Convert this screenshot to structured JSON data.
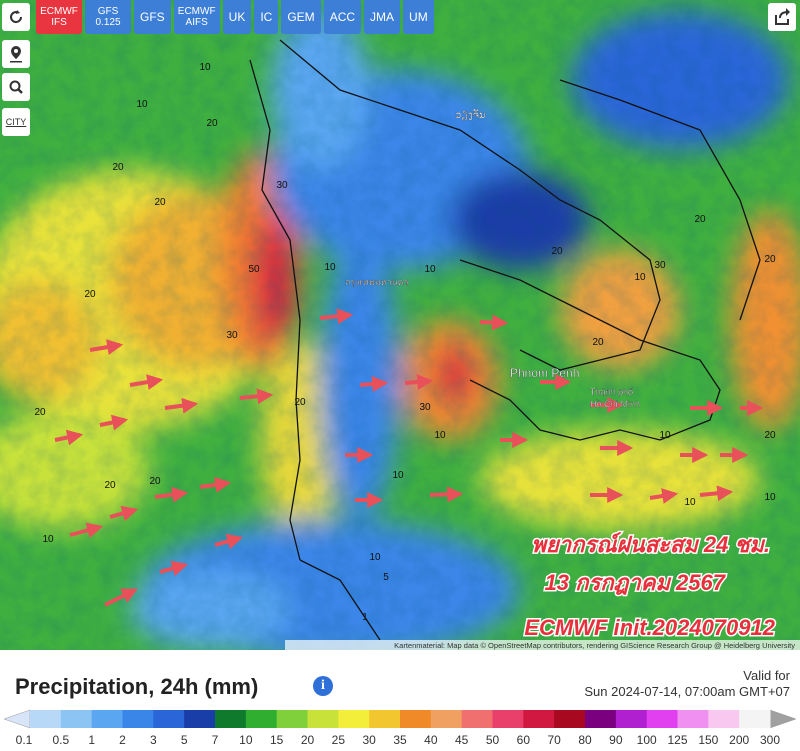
{
  "toolbar": {
    "models": [
      "ECMWF IFS",
      "GFS 0.125",
      "GFS",
      "ECMWF AIFS",
      "UK",
      "IC",
      "GEM",
      "ACC",
      "JMA",
      "UM"
    ]
  },
  "side_buttons": {
    "city": "CITY"
  },
  "map": {
    "places": [
      "กรุงเทพมหานคร",
      "ວຽງຈັນ",
      "Phnom Penh",
      "Thành phố",
      "Hồ Chí Minh"
    ],
    "contour_labels": [
      10,
      20,
      10,
      20,
      30,
      20,
      20,
      30,
      50,
      20,
      20,
      10,
      20,
      10,
      20,
      10,
      10,
      30,
      10,
      20,
      20,
      10,
      30,
      20,
      10,
      10,
      20,
      10,
      10,
      1,
      5,
      20
    ],
    "overlay": [
      "พยากรณ์ฝนสะสม 24 ชม.",
      "13 กรกฎาคม 2567",
      "ECMWF init.2024070912"
    ],
    "attribution": "Kartenmaterial: Map data © OpenStreetMap contributors, rendering GIScience Research Group @ Heidelberg University"
  },
  "footer": {
    "title": "Precipitation, 24h (mm)",
    "valid_label": "Valid for",
    "valid_time": "Sun 2024-07-14, 07:00am GMT+07"
  },
  "legend": {
    "labels": [
      0.1,
      0.5,
      1,
      2,
      3,
      5,
      7,
      10,
      15,
      20,
      25,
      30,
      35,
      40,
      45,
      50,
      60,
      70,
      80,
      90,
      100,
      125,
      150,
      200,
      300
    ],
    "colors": [
      "#b8d8f8",
      "#8cc4f4",
      "#5aa6f0",
      "#3a86e8",
      "#2a66d8",
      "#1a3ea8",
      "#0f7a2c",
      "#2fae2f",
      "#7fd03a",
      "#c8e23a",
      "#f2ee3a",
      "#f2c62e",
      "#f08a28",
      "#f0a060",
      "#f07070",
      "#e8406a",
      "#d01840",
      "#a80820",
      "#7a0080",
      "#b020d0",
      "#e040f0",
      "#f090f0",
      "#f8c8f0",
      "#f4f4f4"
    ],
    "end_colors": [
      "#d8e4f8",
      "#a0a0a0"
    ]
  }
}
